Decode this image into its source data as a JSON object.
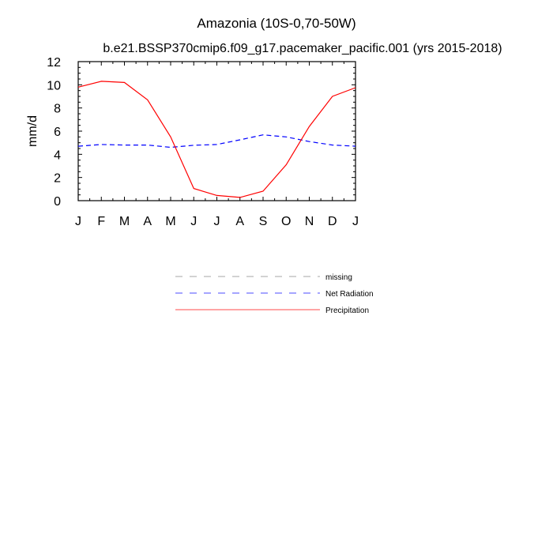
{
  "chart_data": {
    "type": "line",
    "title": "Amazonia (10S-0,70-50W)",
    "subtitle": "b.e21.BSSP370cmip6.f09_g17.pacemaker_pacific.001 (yrs 2015-2018)",
    "xlabel": "",
    "ylabel": "mm/d",
    "categories": [
      "J",
      "F",
      "M",
      "A",
      "M",
      "J",
      "J",
      "A",
      "S",
      "O",
      "N",
      "D",
      "J"
    ],
    "ylim": [
      0,
      12
    ],
    "yticks": [
      0,
      2,
      4,
      6,
      8,
      10,
      12
    ],
    "grid": false,
    "legend_position": "below",
    "series": [
      {
        "name": "Net Radiation",
        "color": "#0000ff",
        "dash": "dashed",
        "values": [
          4.7,
          4.85,
          4.8,
          4.8,
          4.6,
          4.78,
          4.85,
          5.25,
          5.68,
          5.5,
          5.1,
          4.8,
          4.7
        ]
      },
      {
        "name": "Precipitation",
        "color": "#ff0000",
        "dash": "solid",
        "values": [
          9.8,
          10.3,
          10.2,
          8.7,
          5.5,
          1.05,
          0.45,
          0.28,
          0.82,
          3.1,
          6.4,
          9.0,
          9.75
        ]
      }
    ],
    "legend": [
      {
        "label": "missing",
        "color": "#808080",
        "dash": "dashed"
      },
      {
        "label": "Net Radiation",
        "color": "#0000ff",
        "dash": "dashed"
      },
      {
        "label": "Precipitation",
        "color": "#ff0000",
        "dash": "solid"
      }
    ]
  }
}
